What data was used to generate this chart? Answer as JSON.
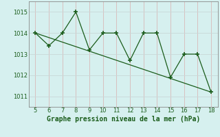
{
  "x": [
    5,
    6,
    7,
    8,
    9,
    10,
    11,
    12,
    13,
    14,
    15,
    16,
    17,
    18
  ],
  "y": [
    1014.0,
    1013.4,
    1014.0,
    1015.0,
    1013.2,
    1014.0,
    1014.0,
    1012.7,
    1014.0,
    1014.0,
    1011.9,
    1013.0,
    1013.0,
    1011.2
  ],
  "trend_x": [
    5,
    18
  ],
  "trend_y": [
    1014.0,
    1011.2
  ],
  "line_color": "#1a5c1a",
  "bg_color": "#d6f0ef",
  "xlabel": "Graphe pression niveau de la mer (hPa)",
  "ylim": [
    1010.5,
    1015.5
  ],
  "xlim": [
    4.5,
    18.5
  ],
  "yticks": [
    1011,
    1012,
    1013,
    1014,
    1015
  ],
  "xticks": [
    5,
    6,
    7,
    8,
    9,
    10,
    11,
    12,
    13,
    14,
    15,
    16,
    17,
    18
  ],
  "grid_color_v": "#d8b8b8",
  "grid_color_h": "#c8d8d8",
  "marker": "+",
  "markersize": 4,
  "linewidth": 0.9,
  "xlabel_fontsize": 7.0,
  "tick_fontsize": 6.0
}
